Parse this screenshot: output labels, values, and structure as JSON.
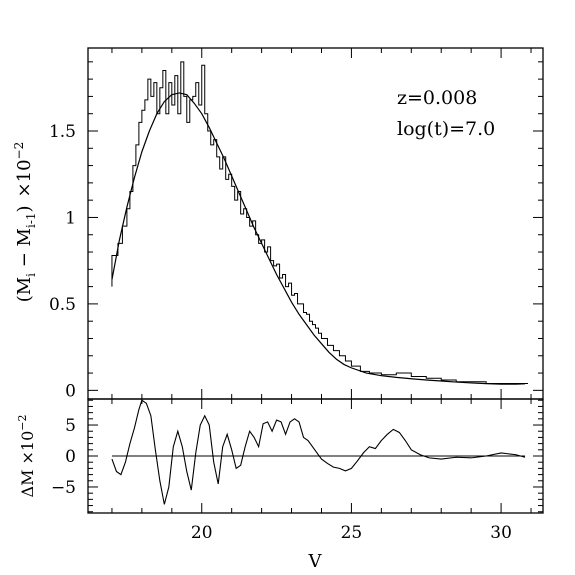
{
  "chart_data": [
    {
      "panel": "top",
      "type": "line",
      "ylabel_main": "(M",
      "ylabel_sub1": "i",
      "ylabel_mid": " − M",
      "ylabel_sub2": "i-1",
      "ylabel_close": ")",
      "ylabel_scale": "×10",
      "ylabel_exp": "−2",
      "xlim": [
        16.2,
        31.4
      ],
      "ylim": [
        -0.05,
        1.98
      ],
      "yticks": [
        0,
        0.5,
        1,
        1.5
      ],
      "ytick_labels": [
        "0",
        "0.5",
        "1",
        "1.5"
      ],
      "annotations": [
        "z=0.008",
        "log(t)=7.0"
      ],
      "series": [
        {
          "style": "step",
          "x": [
            17.0,
            17.2,
            17.35,
            17.5,
            17.6,
            17.7,
            17.8,
            17.9,
            18.0,
            18.1,
            18.2,
            18.3,
            18.4,
            18.5,
            18.6,
            18.7,
            18.8,
            18.9,
            19.0,
            19.1,
            19.2,
            19.3,
            19.4,
            19.5,
            19.6,
            19.7,
            19.8,
            19.9,
            20.0,
            20.1,
            20.2,
            20.3,
            20.4,
            20.5,
            20.6,
            20.7,
            20.8,
            20.9,
            21.0,
            21.1,
            21.2,
            21.3,
            21.4,
            21.5,
            21.6,
            21.7,
            21.8,
            21.9,
            22.0,
            22.1,
            22.2,
            22.3,
            22.4,
            22.5,
            22.6,
            22.7,
            22.8,
            22.9,
            23.0,
            23.1,
            23.2,
            23.3,
            23.4,
            23.5,
            23.6,
            23.7,
            23.8,
            23.9,
            24.0,
            24.2,
            24.4,
            24.6,
            24.8,
            25.0,
            25.3,
            25.6,
            26.0,
            26.5,
            27.0,
            27.5,
            28.0,
            28.5,
            29.0,
            29.5,
            30.0,
            30.5,
            30.8
          ],
          "y": [
            0.78,
            0.85,
            0.95,
            1.05,
            1.15,
            1.3,
            1.42,
            1.55,
            1.62,
            1.68,
            1.8,
            1.7,
            1.78,
            1.6,
            1.75,
            1.85,
            1.6,
            1.78,
            1.65,
            1.82,
            1.6,
            1.9,
            1.7,
            1.55,
            1.68,
            1.7,
            1.78,
            1.65,
            1.88,
            1.6,
            1.5,
            1.42,
            1.45,
            1.35,
            1.28,
            1.35,
            1.22,
            1.25,
            1.18,
            1.1,
            1.15,
            1.02,
            1.05,
            1.0,
            0.95,
            0.98,
            0.9,
            0.85,
            0.87,
            0.8,
            0.83,
            0.75,
            0.72,
            0.73,
            0.65,
            0.67,
            0.6,
            0.62,
            0.55,
            0.56,
            0.5,
            0.5,
            0.45,
            0.44,
            0.4,
            0.38,
            0.36,
            0.33,
            0.3,
            0.26,
            0.23,
            0.2,
            0.17,
            0.14,
            0.11,
            0.1,
            0.09,
            0.1,
            0.08,
            0.07,
            0.06,
            0.05,
            0.05,
            0.04,
            0.04,
            0.04,
            0.04
          ]
        },
        {
          "style": "smooth",
          "x": [
            17.0,
            17.25,
            17.5,
            17.75,
            18.0,
            18.25,
            18.5,
            18.75,
            19.0,
            19.25,
            19.5,
            19.75,
            20.0,
            20.25,
            20.5,
            20.75,
            21.0,
            21.25,
            21.5,
            21.75,
            22.0,
            22.25,
            22.5,
            22.75,
            23.0,
            23.25,
            23.5,
            23.75,
            24.0,
            24.25,
            24.5,
            24.75,
            25.0,
            25.5,
            26.0,
            26.5,
            27.0,
            27.5,
            28.0,
            28.5,
            29.0,
            29.5,
            30.0,
            30.5,
            30.8
          ],
          "y": [
            0.64,
            0.87,
            1.06,
            1.23,
            1.38,
            1.5,
            1.6,
            1.67,
            1.71,
            1.72,
            1.71,
            1.66,
            1.6,
            1.52,
            1.43,
            1.34,
            1.24,
            1.14,
            1.04,
            0.94,
            0.85,
            0.76,
            0.67,
            0.59,
            0.51,
            0.44,
            0.38,
            0.32,
            0.27,
            0.22,
            0.18,
            0.15,
            0.13,
            0.1,
            0.085,
            0.075,
            0.067,
            0.06,
            0.054,
            0.048,
            0.043,
            0.039,
            0.036,
            0.036,
            0.038
          ]
        }
      ]
    },
    {
      "panel": "bottom",
      "type": "line",
      "ylabel": "ΔM",
      "ylabel_scale": "×10",
      "ylabel_exp": "−2",
      "xlabel": "V",
      "xlim": [
        16.2,
        31.4
      ],
      "ylim": [
        -9.2,
        9.2
      ],
      "yticks": [
        -5,
        0,
        5
      ],
      "ytick_labels": [
        "−5",
        "0",
        "5"
      ],
      "xticks": [
        20,
        25,
        30
      ],
      "xtick_labels": [
        "20",
        "25",
        "30"
      ],
      "reference_line_y": 0,
      "series": [
        {
          "style": "line",
          "x": [
            17.0,
            17.15,
            17.3,
            17.45,
            17.6,
            17.75,
            17.9,
            18.0,
            18.15,
            18.3,
            18.45,
            18.6,
            18.75,
            18.9,
            19.05,
            19.2,
            19.35,
            19.5,
            19.65,
            19.8,
            19.95,
            20.1,
            20.25,
            20.4,
            20.55,
            20.7,
            20.85,
            21.0,
            21.15,
            21.3,
            21.45,
            21.6,
            21.75,
            21.9,
            22.05,
            22.2,
            22.35,
            22.5,
            22.65,
            22.8,
            22.95,
            23.1,
            23.25,
            23.4,
            23.55,
            23.7,
            23.85,
            24.0,
            24.2,
            24.4,
            24.6,
            24.8,
            25.0,
            25.2,
            25.4,
            25.6,
            25.8,
            26.0,
            26.2,
            26.4,
            26.6,
            26.8,
            27.0,
            27.3,
            27.6,
            28.0,
            28.5,
            29.0,
            29.5,
            30.0,
            30.5,
            30.8
          ],
          "y": [
            -0.5,
            -2.5,
            -3.0,
            -1.0,
            2.0,
            4.5,
            7.5,
            9.0,
            8.5,
            6.5,
            1.0,
            -4.0,
            -7.8,
            -5.0,
            1.5,
            4.0,
            1.5,
            -2.5,
            -5.5,
            0.5,
            5.0,
            6.5,
            5.0,
            -1.0,
            -4.5,
            1.5,
            3.5,
            1.0,
            -2.0,
            -1.5,
            1.5,
            4.0,
            3.0,
            1.5,
            5.2,
            5.5,
            4.0,
            5.8,
            5.5,
            3.5,
            5.5,
            6.0,
            5.5,
            3.0,
            2.5,
            1.5,
            0.5,
            -0.5,
            -1.2,
            -1.8,
            -2.0,
            -2.4,
            -2.0,
            -0.8,
            0.5,
            1.5,
            1.2,
            2.5,
            3.5,
            4.3,
            3.8,
            2.5,
            1.0,
            0.2,
            -0.3,
            -0.5,
            -0.2,
            -0.3,
            0.0,
            0.5,
            0.2,
            -0.2
          ]
        }
      ]
    }
  ]
}
